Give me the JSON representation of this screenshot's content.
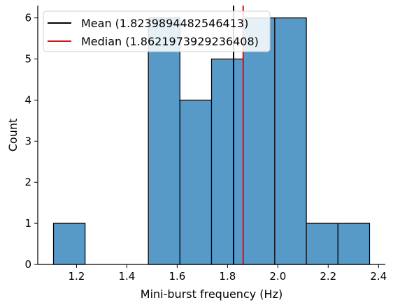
{
  "chart_data": {
    "type": "bar",
    "subtype": "histogram",
    "bin_width": 0.1256,
    "bin_edges": [
      1.1085,
      1.2341,
      1.3597,
      1.4853,
      1.6109,
      1.7365,
      1.8621,
      1.9877,
      2.1133,
      2.2389,
      2.3645
    ],
    "counts": [
      1,
      0,
      0,
      6,
      4,
      5,
      6,
      6,
      1,
      1
    ],
    "xlabel": "Mini-burst frequency (Hz)",
    "ylabel": "Count",
    "xlim": [
      1.046,
      2.427
    ],
    "ylim": [
      0,
      6.3
    ],
    "x_ticks": [
      1.2,
      1.4,
      1.6,
      1.8,
      2.0,
      2.2,
      2.4
    ],
    "x_tick_labels": [
      "1.2",
      "1.4",
      "1.6",
      "1.8",
      "2.0",
      "2.2",
      "2.4"
    ],
    "y_ticks": [
      0,
      1,
      2,
      3,
      4,
      5,
      6
    ],
    "y_tick_labels": [
      "0",
      "1",
      "2",
      "3",
      "4",
      "5",
      "6"
    ],
    "bar_color": "#5799c7",
    "bar_edge_color": "#000000",
    "vlines": [
      {
        "value": 1.8239894482546413,
        "color": "#000000",
        "label": "Mean (1.8239894482546413)"
      },
      {
        "value": 1.8621973929236408,
        "color": "#ff0000",
        "label": "Median (1.8621973929236408)"
      }
    ],
    "legend": {
      "position": "top-left",
      "entries": [
        {
          "label": "Mean (1.8239894482546413)",
          "color": "#000000"
        },
        {
          "label": "Median (1.8621973929236408)",
          "color": "#ff0000"
        }
      ]
    },
    "grid": false
  }
}
